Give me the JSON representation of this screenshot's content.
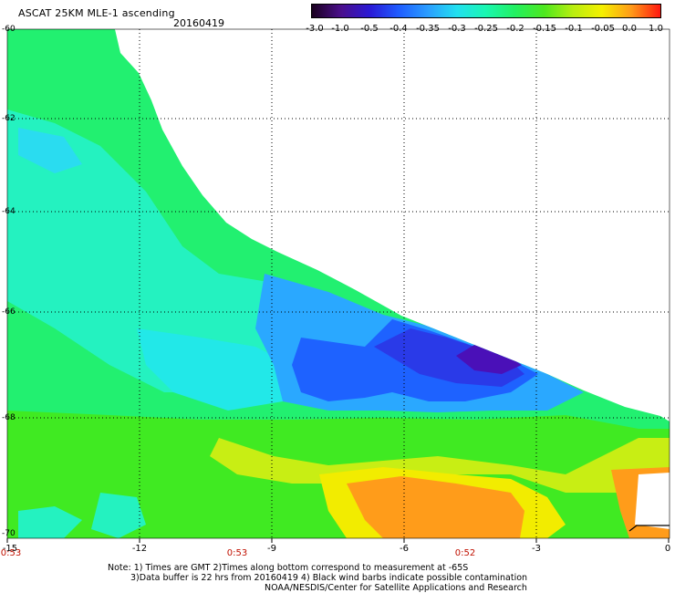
{
  "header": {
    "title": "ASCAT 25KM MLE-1 ascending",
    "date": "20160419"
  },
  "colorbar": {
    "labels": [
      "-3.0",
      "-1.0",
      "-0.5",
      "-0.4",
      "-0.35",
      "-0.3",
      "-0.25",
      "-0.2",
      "-0.15",
      "-0.1",
      "-0.05",
      "0.0",
      "1.0"
    ],
    "colors": [
      "#1a001f",
      "#4b0f8c",
      "#2a1ad6",
      "#1f5cff",
      "#2a9dff",
      "#22e0f0",
      "#19f7b0",
      "#22f060",
      "#4ee81e",
      "#b8ee10",
      "#f5f000",
      "#ff9a18",
      "#ff1810"
    ]
  },
  "axes": {
    "lat_labels": [
      "-60",
      "-62",
      "-64",
      "-66",
      "-68",
      "-70"
    ],
    "lon_labels": [
      "-15",
      "-12",
      "-9",
      "-6",
      "-3",
      "0"
    ],
    "times": [
      "0:53",
      "0:53",
      "0:52"
    ]
  },
  "notes": {
    "line1": "Note: 1) Times are GMT 2)Times along bottom correspond to measurement at -65S",
    "line2": "3)Data buffer is 22 hrs from 20160419 4) Black wind barbs indicate possible contamination",
    "line3": "NOAA/NESDIS/Center for Satellite Applications and Research"
  }
}
